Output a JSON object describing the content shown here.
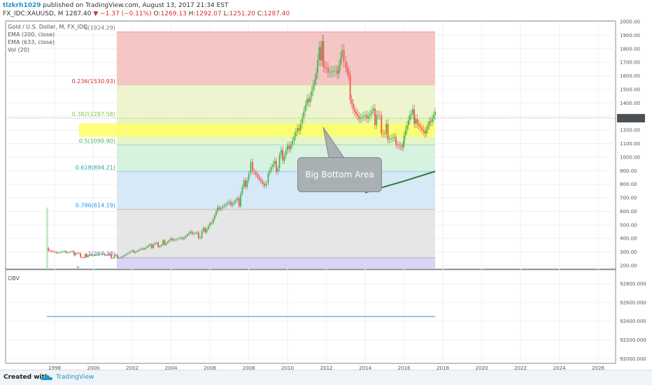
{
  "header": {
    "author": "tlzkrh1029",
    "published_text": "published on TradingView.com, August 13, 2017 21:34 EST",
    "symbol": "FX_IDC:XAUUSD, M",
    "last": "1287.40",
    "change": "▼ −1.37 (−0.11%)",
    "o_label": "O:",
    "o_value": "1269.13",
    "h_label": "H:",
    "h_value": "1292.07",
    "l_label": "L:",
    "l_value": "1251.20",
    "c_label": "C:",
    "c_value": "1287.40"
  },
  "legend": {
    "title": "Gold / U.S. Dollar, M, FX_IDC",
    "ema1": "EMA (200, close)",
    "ema2": "EMA (633, close)",
    "vol": "Vol (20)"
  },
  "obv_label": "OBV",
  "callout_text": "Big Bottom Area",
  "footer": {
    "created_with": "Created with",
    "brand": "TradingView"
  },
  "price_badge": "1287.40",
  "colors": {
    "bull": "#4caf50",
    "bear": "#ef5350",
    "ema": "#2e7d32",
    "fib_0": "#ef9a9a",
    "fib_236": "#d4e8a0",
    "fib_382": "#ffff66",
    "fib_5": "#a5d6a7",
    "fib_618": "#90caf9",
    "fib_786": "#bdbdbd",
    "fib_1": "#b39ddb"
  },
  "chart_data": [
    {
      "type": "candlestick",
      "title": "Gold / U.S. Dollar, M, FX_IDC",
      "x_ticks": [
        "1998",
        "2000",
        "2002",
        "2004",
        "2006",
        "2008",
        "2010",
        "2012",
        "2014",
        "2016",
        "2018",
        "2020",
        "2022",
        "2024",
        "2026"
      ],
      "y_ticks": [
        "2000.00",
        "1900.00",
        "1800.00",
        "1700.00",
        "1600.00",
        "1500.00",
        "1400.00",
        "1300.00",
        "1200.00",
        "1100.00",
        "1000.00",
        "900.00",
        "800.00",
        "700.00",
        "600.00",
        "500.00",
        "400.00",
        "300.00",
        "200.00"
      ],
      "ylim": [
        160,
        2020
      ],
      "series": [
        {
          "name": "Gold / U.S. Dollar",
          "x": [
            1997.6,
            1998.0,
            1998.5,
            1999.0,
            1999.5,
            1999.8,
            2000.0,
            2000.5,
            2001.0,
            2001.3,
            2002.0,
            2002.5,
            2003.0,
            2003.5,
            2004.0,
            2004.5,
            2005.0,
            2005.5,
            2006.0,
            2006.4,
            2007.0,
            2007.5,
            2008.0,
            2008.2,
            2008.8,
            2009.0,
            2009.5,
            2010.0,
            2010.5,
            2011.0,
            2011.4,
            2011.7,
            2012.0,
            2012.5,
            2012.8,
            2013.0,
            2013.3,
            2013.6,
            2014.0,
            2014.5,
            2015.0,
            2015.5,
            2015.9,
            2016.0,
            2016.3,
            2016.6,
            2017.0,
            2017.3,
            2017.6
          ],
          "close": [
            330,
            300,
            295,
            290,
            265,
            290,
            285,
            275,
            265,
            270,
            300,
            315,
            345,
            360,
            400,
            395,
            430,
            420,
            520,
            630,
            640,
            670,
            900,
            940,
            760,
            880,
            950,
            1100,
            1200,
            1380,
            1500,
            1800,
            1700,
            1600,
            1750,
            1620,
            1450,
            1320,
            1280,
            1300,
            1200,
            1150,
            1060,
            1160,
            1250,
            1330,
            1190,
            1250,
            1287.4
          ]
        },
        {
          "name": "EMA (633, close)",
          "x": [
            2014.0,
            2015.0,
            2016.0,
            2017.6
          ],
          "y": [
            738,
            782,
            823,
            895
          ]
        }
      ],
      "fibonacci": [
        {
          "label": "0(1924.29)",
          "level": 0,
          "value": 1924.29
        },
        {
          "label": "0.236(1530.93)",
          "level": 0.236,
          "value": 1530.93
        },
        {
          "label": "0.382(1287.58)",
          "level": 0.382,
          "value": 1287.58
        },
        {
          "label": "0.5(1090.90)",
          "level": 0.5,
          "value": 1090.9
        },
        {
          "label": "0.618(894.21)",
          "level": 0.618,
          "value": 894.21
        },
        {
          "label": "0.786(614.19)",
          "level": 0.786,
          "value": 614.19
        },
        {
          "label": "1(257.38)",
          "level": 1,
          "value": 257.38
        }
      ],
      "fib_range_x": [
        2001.2,
        2017.6
      ],
      "highlight_zone": [
        1150,
        1250
      ]
    },
    {
      "type": "line",
      "title": "OBV",
      "y_ticks": [
        "92800.000",
        "92600.000",
        "92400.000",
        "92200.000",
        "92000.000"
      ],
      "ylim": [
        91950,
        92950
      ],
      "series": [
        {
          "name": "OBV",
          "x": [
            1997.6,
            2017.6
          ],
          "y": [
            92450,
            92450
          ]
        }
      ]
    }
  ]
}
